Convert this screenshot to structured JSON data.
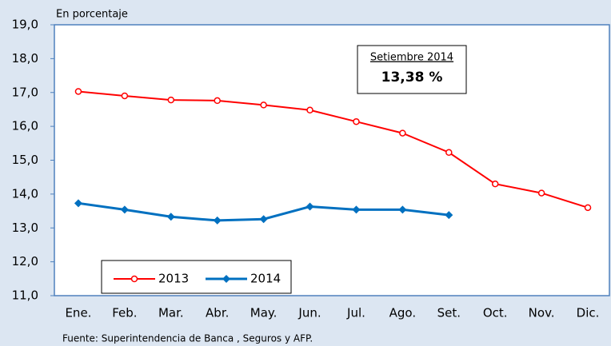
{
  "chart_data": {
    "type": "line",
    "y_axis_label": "En porcentaje",
    "source": "Fuente: Superintendencia de Banca , Seguros y AFP.",
    "annotation": {
      "title": "Setiembre 2014",
      "value": "13,38 %"
    },
    "categories": [
      "Ene.",
      "Feb.",
      "Mar.",
      "Abr.",
      "May.",
      "Jun.",
      "Jul.",
      "Ago.",
      "Set.",
      "Oct.",
      "Nov.",
      "Dic."
    ],
    "series": [
      {
        "name": "2013",
        "color": "#ff0000",
        "marker": "circle",
        "values": [
          17.03,
          16.9,
          16.78,
          16.76,
          16.63,
          16.48,
          16.14,
          15.8,
          15.23,
          14.3,
          14.03,
          13.6
        ]
      },
      {
        "name": "2014",
        "color": "#0070c0",
        "marker": "diamond",
        "values": [
          13.73,
          13.54,
          13.33,
          13.22,
          13.26,
          13.63,
          13.54,
          13.54,
          13.38,
          null,
          null,
          null
        ]
      }
    ],
    "ylim": [
      11,
      19
    ],
    "yticks": [
      {
        "value": 11,
        "label": "11,0"
      },
      {
        "value": 12,
        "label": "12,0"
      },
      {
        "value": 13,
        "label": "13,0"
      },
      {
        "value": 14,
        "label": "14,0"
      },
      {
        "value": 15,
        "label": "15,0"
      },
      {
        "value": 16,
        "label": "16,0"
      },
      {
        "value": 17,
        "label": "17,0"
      },
      {
        "value": 18,
        "label": "18,0"
      },
      {
        "value": 19,
        "label": "19,0"
      }
    ],
    "grid": false
  }
}
